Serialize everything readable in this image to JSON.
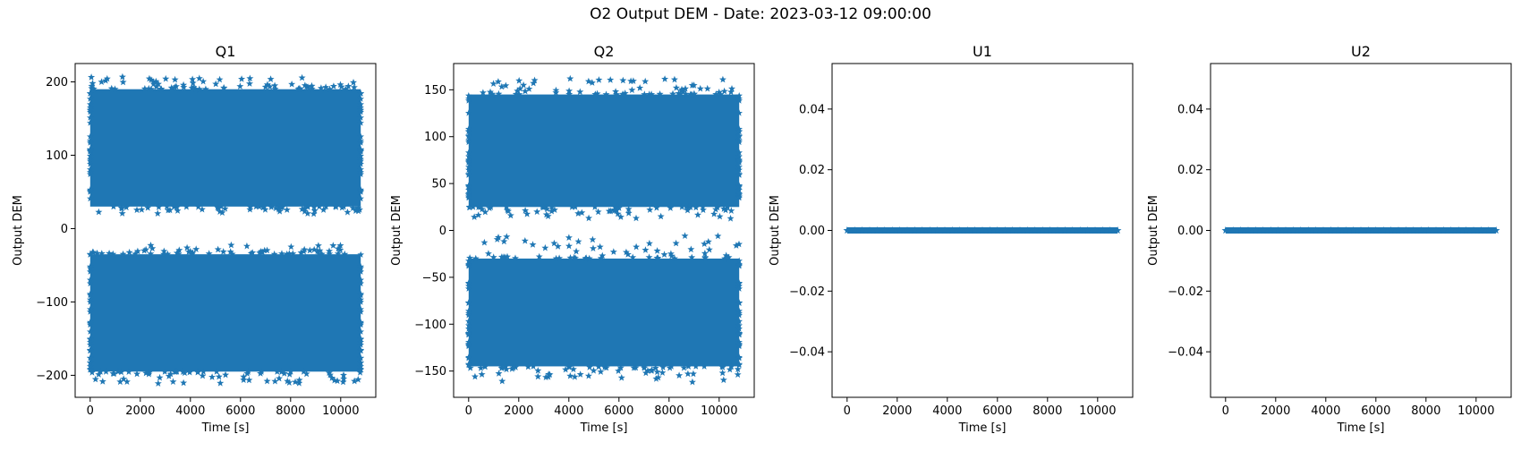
{
  "figure": {
    "suptitle": "O2 Output DEM - Date: 2023-03-12 09:00:00",
    "mark_color": "#1f77b4"
  },
  "chart_data": [
    {
      "type": "scatter",
      "title": "Q1",
      "xlabel": "Time [s]",
      "ylabel": "Output DEM",
      "xlim": [
        -600,
        11400
      ],
      "ylim": [
        -230,
        225
      ],
      "xticks": [
        0,
        2000,
        4000,
        6000,
        8000,
        10000
      ],
      "xtick_labels": [
        "0",
        "2000",
        "4000",
        "6000",
        "8000",
        "10000"
      ],
      "yticks": [
        -200,
        -100,
        0,
        100,
        200
      ],
      "ytick_labels": [
        "−200",
        "−100",
        "0",
        "100",
        "200"
      ],
      "marker": "star",
      "x_range": [
        0,
        10800
      ],
      "bands": [
        {
          "name": "",
          "y_low": 30,
          "y_high": 190,
          "spread_low": 20,
          "spread_high": 207
        },
        {
          "name": "",
          "y_low": -195,
          "y_high": -35,
          "spread_low": -212,
          "spread_high": -22
        }
      ]
    },
    {
      "type": "scatter",
      "title": "Q2",
      "xlabel": "Time [s]",
      "ylabel": "Output DEM",
      "xlim": [
        -600,
        11400
      ],
      "ylim": [
        -178,
        178
      ],
      "xticks": [
        0,
        2000,
        4000,
        6000,
        8000,
        10000
      ],
      "xtick_labels": [
        "0",
        "2000",
        "4000",
        "6000",
        "8000",
        "10000"
      ],
      "yticks": [
        -150,
        -100,
        -50,
        0,
        50,
        100,
        150
      ],
      "ytick_labels": [
        "−150",
        "−100",
        "−50",
        "0",
        "50",
        "100",
        "150"
      ],
      "marker": "star",
      "x_range": [
        0,
        10800
      ],
      "bands": [
        {
          "name": "",
          "y_low": 25,
          "y_high": 145,
          "spread_low": 12,
          "spread_high": 162
        },
        {
          "name": "",
          "y_low": -145,
          "y_high": -30,
          "spread_low": -162,
          "spread_high": -5
        }
      ]
    },
    {
      "type": "scatter",
      "title": "U1",
      "xlabel": "Time [s]",
      "ylabel": "Output DEM",
      "xlim": [
        -600,
        11400
      ],
      "ylim": [
        -0.055,
        0.055
      ],
      "xticks": [
        0,
        2000,
        4000,
        6000,
        8000,
        10000
      ],
      "xtick_labels": [
        "0",
        "2000",
        "4000",
        "6000",
        "8000",
        "10000"
      ],
      "yticks": [
        -0.04,
        -0.02,
        0.0,
        0.02,
        0.04
      ],
      "ytick_labels": [
        "−0.04",
        "−0.02",
        "0.00",
        "0.02",
        "0.04"
      ],
      "marker": "star",
      "x_range": [
        0,
        10800
      ],
      "constant_y": 0.0
    },
    {
      "type": "scatter",
      "title": "U2",
      "xlabel": "Time [s]",
      "ylabel": "Output DEM",
      "xlim": [
        -600,
        11400
      ],
      "ylim": [
        -0.055,
        0.055
      ],
      "xticks": [
        0,
        2000,
        4000,
        6000,
        8000,
        10000
      ],
      "xtick_labels": [
        "0",
        "2000",
        "4000",
        "6000",
        "8000",
        "10000"
      ],
      "yticks": [
        -0.04,
        -0.02,
        0.0,
        0.02,
        0.04
      ],
      "ytick_labels": [
        "−0.04",
        "−0.02",
        "0.00",
        "0.02",
        "0.04"
      ],
      "marker": "star",
      "x_range": [
        0,
        10800
      ],
      "constant_y": 0.0
    }
  ]
}
